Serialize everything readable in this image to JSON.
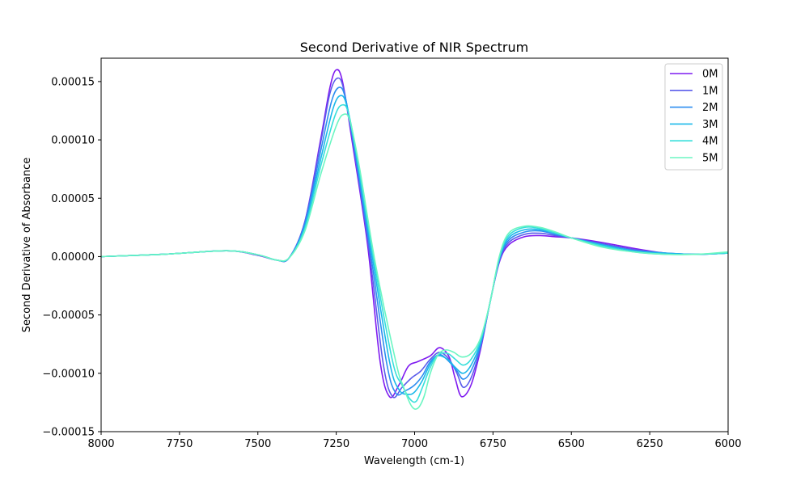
{
  "chart_data": {
    "type": "line",
    "title": "Second Derivative of NIR Spectrum",
    "xlabel": "Wavelength (cm-1)",
    "ylabel": "Second Derivative of Absorbance",
    "xlim": [
      8000,
      6000
    ],
    "ylim": [
      -0.00015,
      0.00017
    ],
    "x_reversed": true,
    "x_ticks": [
      8000,
      7750,
      7500,
      7250,
      7000,
      6750,
      6500,
      6250,
      6000
    ],
    "x_tick_labels": [
      "8000",
      "7750",
      "7500",
      "7250",
      "7000",
      "6750",
      "6500",
      "6250",
      "6000"
    ],
    "y_ticks": [
      -0.00015,
      -0.0001,
      -5e-05,
      0,
      5e-05,
      0.0001,
      0.00015
    ],
    "y_tick_labels": [
      "−0.00015",
      "−0.00010",
      "−0.00005",
      "0.00000",
      "0.00005",
      "0.00010",
      "0.00015"
    ],
    "grid": false,
    "legend_position": "top-right",
    "series": [
      {
        "name": "0M",
        "color": "#7f1bf0",
        "x": [
          8000,
          7800,
          7600,
          7500,
          7440,
          7400,
          7350,
          7300,
          7270,
          7250,
          7230,
          7200,
          7150,
          7110,
          7080,
          7050,
          7020,
          6990,
          6950,
          6920,
          6890,
          6870,
          6850,
          6820,
          6790,
          6760,
          6730,
          6700,
          6650,
          6600,
          6550,
          6500,
          6400,
          6300,
          6200,
          6100,
          6000
        ],
        "y": [
          0,
          2e-06,
          5e-06,
          1e-06,
          -3e-06,
          -1e-06,
          3e-05,
          0.0001,
          0.000145,
          0.00016,
          0.00015,
          0.0001,
          1e-05,
          -9e-05,
          -0.00012,
          -0.00011,
          -9.4e-05,
          -9e-05,
          -8.5e-05,
          -7.8e-05,
          -8.6e-05,
          -0.000105,
          -0.00012,
          -0.00011,
          -8e-05,
          -4e-05,
          -5e-06,
          1e-05,
          1.7e-05,
          1.8e-05,
          1.7e-05,
          1.6e-05,
          1.2e-05,
          7e-06,
          3e-06,
          2e-06,
          3e-06
        ]
      },
      {
        "name": "1M",
        "color": "#5a5ceb",
        "x": [
          8000,
          7800,
          7600,
          7500,
          7440,
          7400,
          7350,
          7300,
          7270,
          7245,
          7225,
          7195,
          7145,
          7100,
          7070,
          7040,
          7010,
          6980,
          6950,
          6920,
          6890,
          6865,
          6845,
          6820,
          6790,
          6760,
          6730,
          6700,
          6650,
          6600,
          6550,
          6500,
          6400,
          6300,
          6200,
          6100,
          6000
        ],
        "y": [
          0,
          2e-06,
          5e-06,
          1.5e-06,
          -3e-06,
          -1e-06,
          3e-05,
          9.7e-05,
          0.00014,
          0.000153,
          0.000142,
          9.5e-05,
          5e-06,
          -9.2e-05,
          -0.00012,
          -0.000112,
          -0.000104,
          -9.8e-05,
          -8.8e-05,
          -8.2e-05,
          -8.8e-05,
          -0.0001,
          -0.000112,
          -0.000104,
          -7.8e-05,
          -4e-05,
          -4e-06,
          1.2e-05,
          1.9e-05,
          2e-05,
          1.8e-05,
          1.6e-05,
          1.1e-05,
          6e-06,
          3e-06,
          2e-06,
          3e-06
        ]
      },
      {
        "name": "2M",
        "color": "#2d8ef0",
        "x": [
          8000,
          7800,
          7600,
          7500,
          7440,
          7400,
          7350,
          7300,
          7265,
          7240,
          7220,
          7190,
          7140,
          7090,
          7060,
          7030,
          7000,
          6975,
          6950,
          6920,
          6890,
          6865,
          6845,
          6820,
          6790,
          6760,
          6730,
          6700,
          6650,
          6600,
          6550,
          6500,
          6400,
          6300,
          6200,
          6100,
          6000
        ],
        "y": [
          0,
          2e-06,
          5e-06,
          1.5e-06,
          -3e-06,
          -1e-06,
          2.8e-05,
          9e-05,
          0.000133,
          0.000145,
          0.000135,
          9e-05,
          2e-06,
          -9e-05,
          -0.000117,
          -0.000115,
          -0.00011,
          -0.000102,
          -9e-05,
          -8.4e-05,
          -9e-05,
          -9.8e-05,
          -0.000105,
          -9.8e-05,
          -7.6e-05,
          -4e-05,
          -3e-06,
          1.4e-05,
          2.1e-05,
          2.2e-05,
          1.9e-05,
          1.6e-05,
          1e-05,
          5e-06,
          3e-06,
          2e-06,
          3e-06
        ]
      },
      {
        "name": "3M",
        "color": "#1ab8ea",
        "x": [
          8000,
          7800,
          7600,
          7500,
          7440,
          7400,
          7350,
          7300,
          7260,
          7235,
          7215,
          7185,
          7135,
          7080,
          7050,
          7020,
          7000,
          6975,
          6950,
          6925,
          6895,
          6870,
          6845,
          6820,
          6790,
          6760,
          6730,
          6700,
          6650,
          6600,
          6550,
          6500,
          6400,
          6300,
          6200,
          6100,
          6000
        ],
        "y": [
          0,
          2e-06,
          5e-06,
          1.5e-06,
          -3e-06,
          -1e-06,
          2.6e-05,
          8.3e-05,
          0.000127,
          0.000138,
          0.000128,
          8.5e-05,
          0,
          -9e-05,
          -0.000114,
          -0.000118,
          -0.000116,
          -0.000106,
          -9.2e-05,
          -8.5e-05,
          -8.8e-05,
          -9.5e-05,
          -0.0001,
          -9.3e-05,
          -7.4e-05,
          -4e-05,
          -2e-06,
          1.6e-05,
          2.3e-05,
          2.3e-05,
          2e-05,
          1.6e-05,
          1e-05,
          5e-06,
          3e-06,
          2e-06,
          3e-06
        ]
      },
      {
        "name": "4M",
        "color": "#37dfdb",
        "x": [
          8000,
          7800,
          7600,
          7500,
          7440,
          7400,
          7350,
          7300,
          7255,
          7230,
          7210,
          7180,
          7130,
          7070,
          7040,
          7015,
          6995,
          6975,
          6950,
          6925,
          6895,
          6870,
          6845,
          6820,
          6790,
          6760,
          6730,
          6700,
          6650,
          6600,
          6550,
          6500,
          6400,
          6300,
          6200,
          6100,
          6000
        ],
        "y": [
          0,
          2e-06,
          5e-06,
          1.5e-06,
          -3e-06,
          -1e-06,
          2.4e-05,
          7.7e-05,
          0.00012,
          0.00013,
          0.000122,
          8e-05,
          -3e-06,
          -9e-05,
          -0.00011,
          -0.000122,
          -0.000124,
          -0.000112,
          -9.5e-05,
          -8.4e-05,
          -8.3e-05,
          -8.8e-05,
          -9.3e-05,
          -8.8e-05,
          -7.2e-05,
          -4e-05,
          -1e-06,
          1.8e-05,
          2.5e-05,
          2.4e-05,
          2e-05,
          1.6e-05,
          9e-06,
          4e-06,
          2e-06,
          2e-06,
          3e-06
        ]
      },
      {
        "name": "5M",
        "color": "#6bf6c2",
        "x": [
          8000,
          7800,
          7600,
          7500,
          7440,
          7400,
          7350,
          7300,
          7250,
          7225,
          7205,
          7175,
          7125,
          7060,
          7035,
          7010,
          6990,
          6970,
          6950,
          6925,
          6900,
          6875,
          6850,
          6820,
          6790,
          6760,
          6730,
          6700,
          6650,
          6600,
          6550,
          6500,
          6400,
          6300,
          6200,
          6100,
          6000
        ],
        "y": [
          0,
          2e-06,
          5e-06,
          1.5e-06,
          -3e-06,
          -1e-06,
          2.2e-05,
          7e-05,
          0.000112,
          0.000122,
          0.000115,
          7.5e-05,
          -6e-06,
          -9e-05,
          -0.000112,
          -0.000128,
          -0.00013,
          -0.00012,
          -0.0001,
          -8.4e-05,
          -8e-05,
          -8.2e-05,
          -8.6e-05,
          -8.3e-05,
          -7e-05,
          -4e-05,
          0,
          2e-05,
          2.6e-05,
          2.5e-05,
          2.1e-05,
          1.6e-05,
          8e-06,
          4e-06,
          2e-06,
          2e-06,
          4e-06
        ]
      }
    ]
  }
}
